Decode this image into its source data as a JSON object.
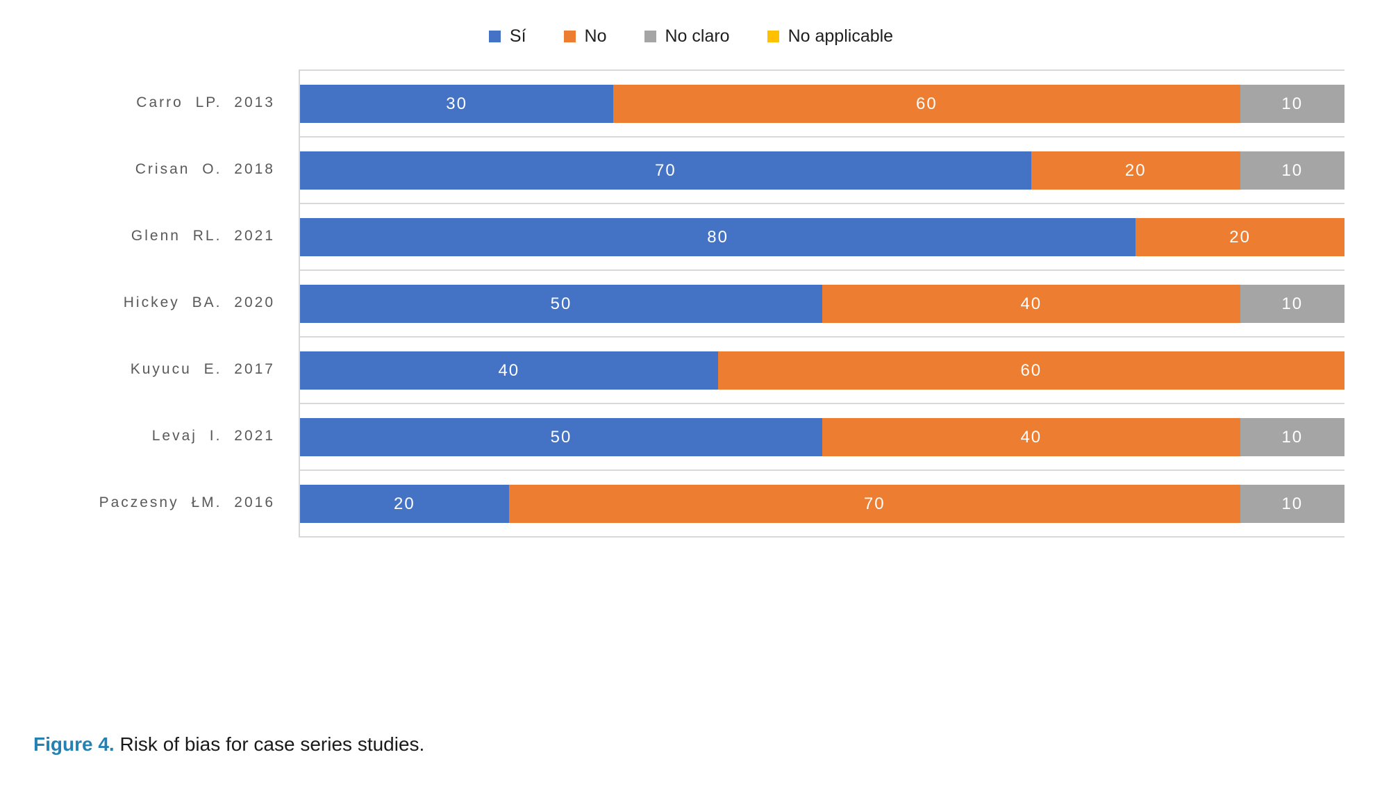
{
  "chart_data": {
    "type": "bar",
    "orientation": "horizontal",
    "stacked": true,
    "title": "",
    "xlabel": "",
    "ylabel": "",
    "xlim": [
      0,
      100
    ],
    "grid": "category band lines only",
    "legend_position": "top-center",
    "value_labels": "white numbers centered in each nonzero segment",
    "categories": [
      "Carro LP. 2013",
      "Crisan O. 2018",
      "Glenn RL. 2021",
      "Hickey BA. 2020",
      "Kuyucu E. 2017",
      "Levaj I. 2021",
      "Paczesny ŁM. 2016"
    ],
    "series": [
      {
        "name": "Sí",
        "color": "#4472C4",
        "values": [
          30,
          70,
          80,
          50,
          40,
          50,
          20
        ]
      },
      {
        "name": "No",
        "color": "#ED7D31",
        "values": [
          60,
          20,
          20,
          40,
          60,
          40,
          70
        ]
      },
      {
        "name": "No claro",
        "color": "#A5A5A5",
        "values": [
          10,
          10,
          0,
          10,
          0,
          10,
          10
        ]
      },
      {
        "name": "No applicable",
        "color": "#FFC000",
        "values": [
          0,
          0,
          0,
          0,
          0,
          0,
          0
        ]
      }
    ]
  },
  "caption": {
    "figure_label": "Figure 4.",
    "text": "Risk of bias for case series studies."
  },
  "colors": {
    "si": "#4472C4",
    "no": "#ED7D31",
    "no_claro": "#A5A5A5",
    "no_applicable": "#FFC000",
    "gridline": "#D9D9D9",
    "axis_label_text": "#595959",
    "bar_value_text": "#FFFFFF",
    "caption_accent": "#2581B1",
    "background": "#FFFFFF"
  }
}
